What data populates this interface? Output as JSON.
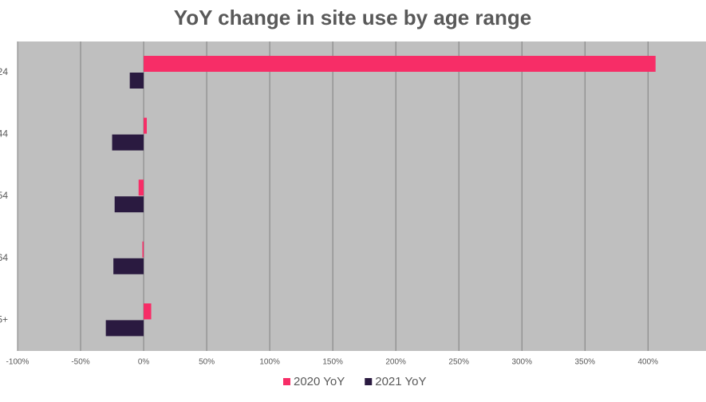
{
  "chart_data": {
    "type": "hbar",
    "title": "YoY change in site use by age range",
    "categories": [
      "24",
      "44",
      "54",
      "64",
      "5+"
    ],
    "series": [
      {
        "name": "2020 YoY",
        "color": "#f72d67",
        "values": [
          406,
          2.5,
          -4,
          -1,
          6
        ]
      },
      {
        "name": "2021 YoY",
        "color": "#2a1a40",
        "values": [
          -11,
          -25,
          -23,
          -24,
          -30
        ]
      }
    ],
    "xlim": [
      -100,
      446
    ],
    "xticks": [
      {
        "value": -100,
        "label": "-100%"
      },
      {
        "value": -50,
        "label": "-50%"
      },
      {
        "value": 0,
        "label": "0%"
      },
      {
        "value": 50,
        "label": "50%"
      },
      {
        "value": 100,
        "label": "100%"
      },
      {
        "value": 150,
        "label": "150%"
      },
      {
        "value": 200,
        "label": "200%"
      },
      {
        "value": 250,
        "label": "250%"
      },
      {
        "value": 300,
        "label": "300%"
      },
      {
        "value": 350,
        "label": "350%"
      },
      {
        "value": 400,
        "label": "400%"
      }
    ],
    "grid": true,
    "legend": "bottom"
  }
}
